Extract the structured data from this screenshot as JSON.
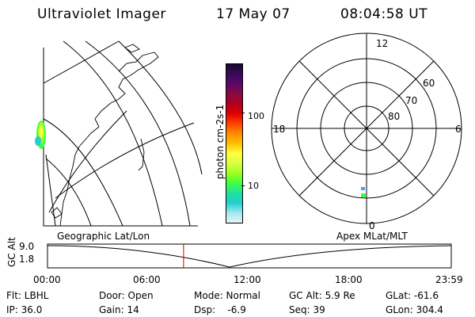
{
  "header": {
    "title": "Ultraviolet Imager",
    "date": "17 May 07",
    "time": "08:04:58 UT"
  },
  "colorbar": {
    "unit_label": "photon cm-2s-1",
    "ticks": [
      "100",
      "10"
    ],
    "colors": [
      "#1a0830",
      "#3a0a5a",
      "#5a0a6a",
      "#8a0a40",
      "#b00020",
      "#e00000",
      "#ff4000",
      "#ff8c00",
      "#ffbf00",
      "#ffff40",
      "#d8ff40",
      "#a0ff20",
      "#40ff40",
      "#20e0a0",
      "#20d0d0",
      "#a0e8f0",
      "#e8f4f8"
    ]
  },
  "polar": {
    "mlt_labels": {
      "top": "12",
      "left": "18",
      "right": "6",
      "bottom": "0"
    },
    "lat_labels": [
      "60",
      "70",
      "80"
    ]
  },
  "timeline": {
    "ylabel": "GC Alt",
    "ymax": "9.0",
    "ymin": "1.8",
    "left_caption": "Geographic Lat/Lon",
    "right_caption": "Apex MLat/MLT",
    "x_ticks": [
      "00:00",
      "06:00",
      "12:00",
      "18:00",
      "23:59"
    ],
    "marker_time": "08:04:58"
  },
  "info": {
    "filter": "Flt: LBHL",
    "door": "Door: Open",
    "mode": "Mode: Normal",
    "gc_alt": "GC Alt: 5.9 Re",
    "glat": "GLat: -61.6",
    "ip": "IP: 36.0",
    "gain": "Gain: 14",
    "dsp": "Dsp:    -6.9",
    "seq": "Seq: 39",
    "glon": "GLon: 304.4"
  }
}
